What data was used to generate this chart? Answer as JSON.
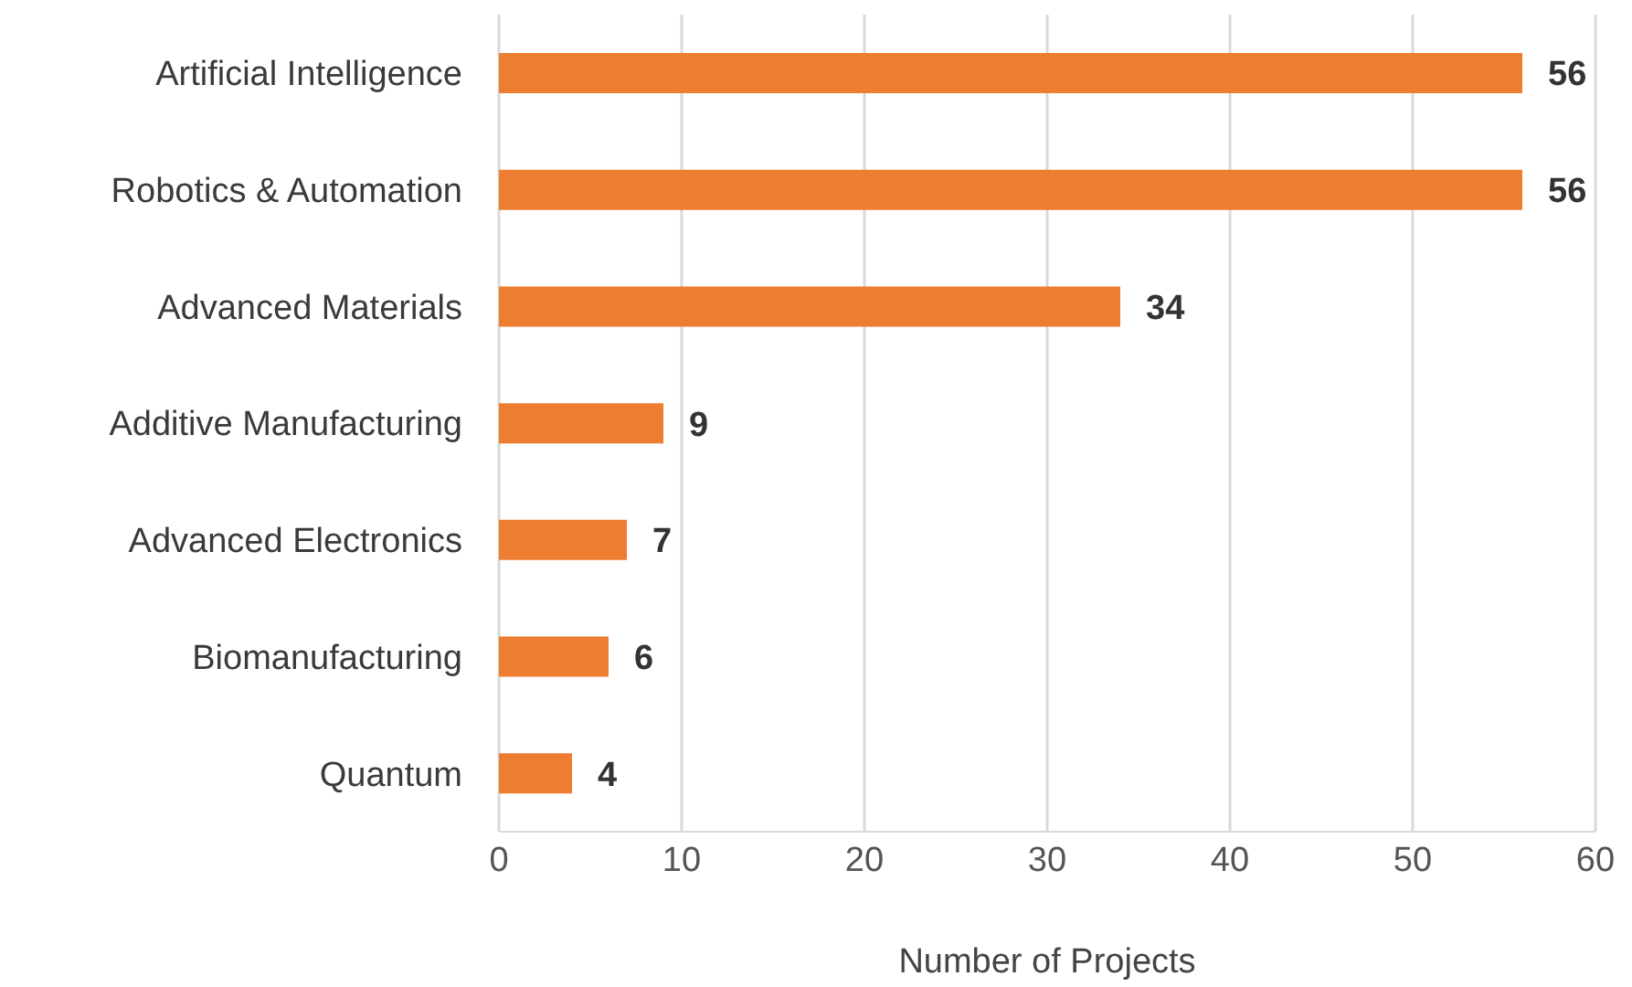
{
  "chart_data": {
    "type": "bar",
    "orientation": "horizontal",
    "categories": [
      "Artificial Intelligence",
      "Robotics & Automation",
      "Advanced Materials",
      "Additive Manufacturing",
      "Advanced Electronics",
      "Biomanufacturing",
      "Quantum"
    ],
    "values": [
      56,
      56,
      34,
      9,
      7,
      6,
      4
    ],
    "color": "#ed7d31",
    "xlabel": "Number of Projects",
    "xlim": [
      0,
      60
    ],
    "xticks": [
      0,
      10,
      20,
      30,
      40,
      50,
      60
    ],
    "grid": "x",
    "data_labels": true
  }
}
